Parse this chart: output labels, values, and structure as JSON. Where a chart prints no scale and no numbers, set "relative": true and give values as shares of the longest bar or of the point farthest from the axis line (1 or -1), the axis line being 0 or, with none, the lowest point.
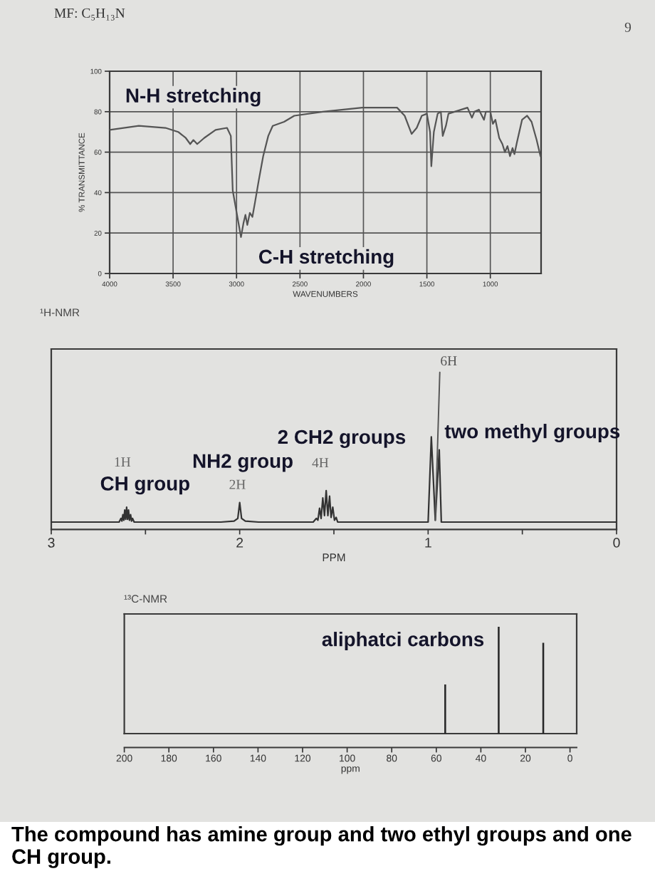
{
  "chart_data": [
    {
      "type": "line",
      "title": "MF: C₅H₁₃N",
      "xlabel": "WAVENUMBERS",
      "ylabel": "% TRANSMITTANCE",
      "x": [
        4000,
        3770,
        3560,
        3460,
        3400,
        3365,
        3340,
        3310,
        3255,
        3165,
        3075,
        3045,
        3030,
        2965,
        2945,
        2930,
        2915,
        2895,
        2875,
        2855,
        2825,
        2790,
        2750,
        2715,
        2625,
        2545,
        2320,
        2010,
        1735,
        1675,
        1620,
        1580,
        1540,
        1500,
        1475,
        1465,
        1445,
        1415,
        1390,
        1375,
        1350,
        1330,
        1180,
        1145,
        1125,
        1090,
        1050,
        1035,
        1000,
        980,
        960,
        930,
        905,
        885,
        865,
        845,
        825,
        810,
        790,
        750,
        710,
        675,
        635,
        605
      ],
      "values": [
        71,
        73,
        72,
        70,
        67,
        64,
        66,
        64,
        67,
        71,
        72,
        68,
        41,
        18,
        25,
        29,
        24,
        30,
        28,
        35,
        46,
        58,
        68,
        73,
        75,
        78,
        80,
        82,
        82,
        78,
        69,
        72,
        78,
        79,
        70,
        53,
        70,
        79,
        80,
        68,
        73,
        79,
        82,
        77,
        80,
        81,
        76,
        80,
        80,
        74,
        76,
        67,
        64,
        60,
        63,
        58,
        62,
        59,
        65,
        76,
        78,
        75,
        66,
        58
      ],
      "color": "#555555",
      "xlim": [
        4000,
        600
      ],
      "xticks": [
        4000,
        3500,
        3000,
        2500,
        2000,
        1500,
        1000
      ],
      "ylim": [
        0,
        100
      ],
      "yticks": [
        0,
        20,
        40,
        60,
        80,
        100
      ],
      "grid": true,
      "annotations": [
        {
          "text": "N-H stretching",
          "x": 3340,
          "y": 66
        },
        {
          "text": "C-H stretching",
          "x": 2965,
          "y": 18
        },
        "9"
      ]
    },
    {
      "type": "line",
      "title": "¹H-NMR",
      "xlabel": "PPM",
      "relative": true,
      "x": [
        3.0,
        2.64,
        2.63,
        2.625,
        2.62,
        2.615,
        2.61,
        2.605,
        2.6,
        2.595,
        2.59,
        2.585,
        2.579,
        2.574,
        2.569,
        2.56,
        2.1,
        2.03,
        2.01,
        2.0,
        1.99,
        1.97,
        1.9,
        1.61,
        1.593,
        1.585,
        1.576,
        1.568,
        1.559,
        1.55,
        1.541,
        1.532,
        1.523,
        1.515,
        1.506,
        1.497,
        1.488,
        1.48,
        1.0,
        0.983,
        0.962,
        0.941,
        0.93,
        0.0
      ],
      "values": [
        0.08,
        0.08,
        0.12,
        0.09,
        0.16,
        0.1,
        0.21,
        0.11,
        0.24,
        0.11,
        0.21,
        0.1,
        0.16,
        0.09,
        0.12,
        0.08,
        0.08,
        0.09,
        0.12,
        0.29,
        0.12,
        0.09,
        0.08,
        0.08,
        0.12,
        0.1,
        0.23,
        0.12,
        0.34,
        0.15,
        0.42,
        0.15,
        0.36,
        0.13,
        0.24,
        0.1,
        0.13,
        0.08,
        0.08,
        1,
        0.1,
        0.86,
        0.08,
        0.08
      ],
      "color": "#333333",
      "xlim": [
        3,
        0
      ],
      "xticks": [
        3,
        {
          "value": 2.5,
          "label": null
        },
        2,
        {
          "value": 1.5,
          "label": null
        },
        1,
        {
          "value": 0.5,
          "label": null
        },
        0
      ],
      "annotations": [
        {
          "text": "1H",
          "x": 2.6,
          "y": 0.24
        },
        {
          "text": "CH group",
          "x": 2.6,
          "y": 0.24
        },
        {
          "text": "2H",
          "x": 2.0,
          "y": 0.29
        },
        {
          "text": "NH2 group",
          "x": 2.0,
          "y": 0.29
        },
        {
          "text": "4H",
          "x": 1.541,
          "y": 0.42
        },
        {
          "text": "2 CH2 groups",
          "x": 1.541,
          "y": 0.42
        },
        {
          "text": "6H",
          "x": 0.962,
          "y": 0.1
        },
        {
          "text": "two methyl groups",
          "x": 0.983,
          "y": 1
        }
      ]
    },
    {
      "type": "bar",
      "title": "¹³C-NMR",
      "xlabel": "ppm",
      "relative": true,
      "x": [
        56,
        32,
        12
      ],
      "values": [
        0.46,
        1,
        0.85
      ],
      "color": "#262626",
      "xlim": [
        200,
        -3
      ],
      "xticks": [
        200,
        180,
        160,
        140,
        120,
        100,
        80,
        60,
        40,
        20,
        0
      ],
      "annotations": [
        "aliphatci carbons",
        "The compound has amine group and two ethyl groups and one CH group."
      ]
    }
  ]
}
